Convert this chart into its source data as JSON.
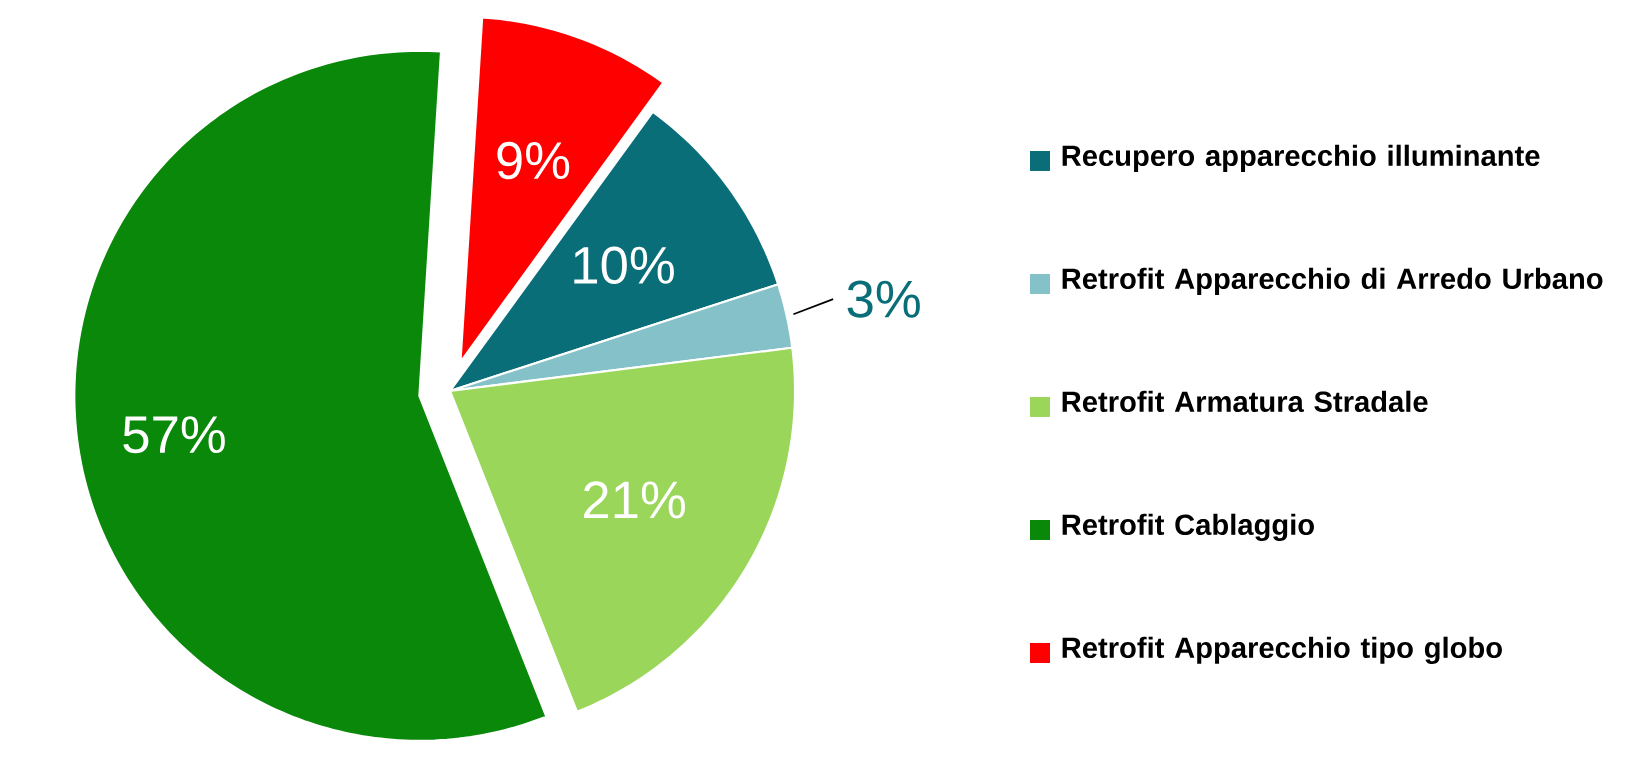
{
  "chart_data": {
    "type": "pie",
    "categories": [
      "Recupero apparecchio illuminante",
      "Retrofit Apparecchio di Arredo Urbano",
      "Retrofit Armatura Stradale",
      "Retrofit Cablaggio",
      "Retrofit Apparecchio tipo globo"
    ],
    "values": [
      10,
      3,
      21,
      57,
      9
    ],
    "value_labels": [
      "10%",
      "3%",
      "21%",
      "57%",
      "9%"
    ],
    "colors": [
      "#0a6e78",
      "#85c1c8",
      "#99d65a",
      "#0a880a",
      "#ff0000"
    ],
    "legend": "right"
  }
}
